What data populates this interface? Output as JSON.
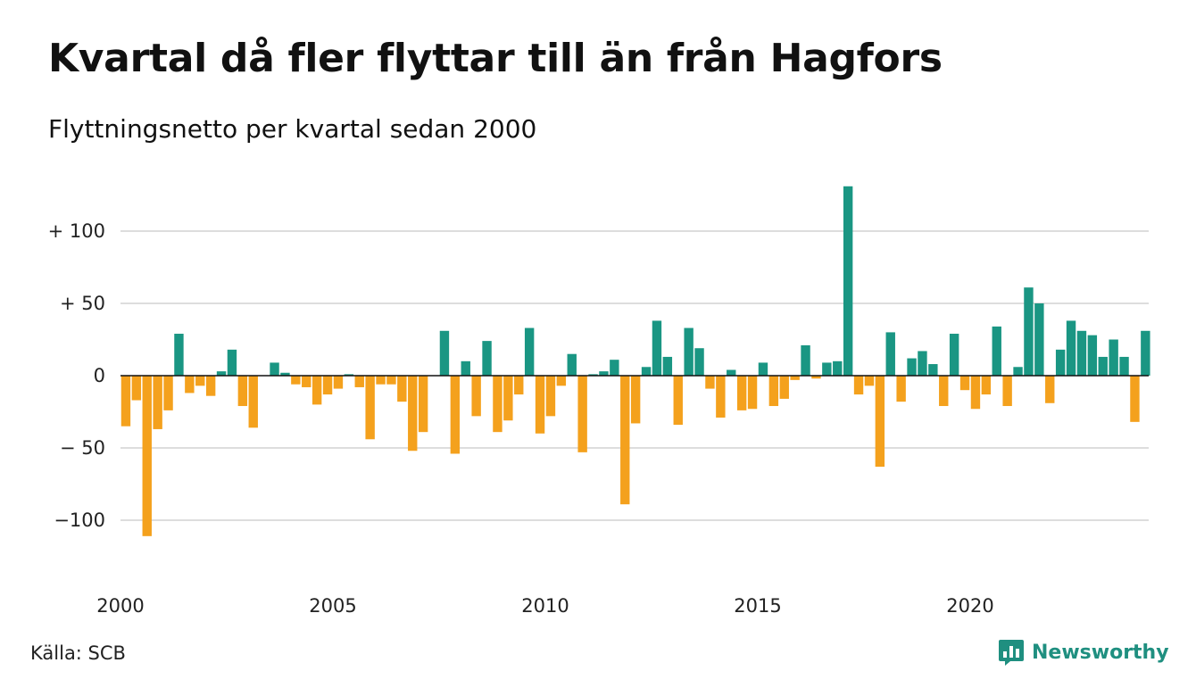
{
  "header": {
    "title": "Kvartal då fler flyttar till än från Hagfors",
    "subtitle": "Flyttningsnetto per kvartal sedan 2000"
  },
  "footer": {
    "source": "Källa: SCB",
    "brand": "Newsworthy",
    "brand_icon": "newsworthy-logo-icon"
  },
  "colors": {
    "positive": "#1a9683",
    "negative": "#f4a11d",
    "grid": "#dddddd",
    "zero_line": "#111111",
    "brand": "#1f8f80"
  },
  "chart_data": {
    "type": "bar",
    "title": "Kvartal då fler flyttar till än från Hagfors",
    "subtitle": "Flyttningsnetto per kvartal sedan 2000",
    "x_start": "2000 Q1",
    "x_unit": "quarter",
    "x_ticks": [
      "2000",
      "2005",
      "2010",
      "2015",
      "2020"
    ],
    "x_tick_quarter_index": [
      0,
      20,
      40,
      60,
      80
    ],
    "y_ticks": [
      100,
      50,
      0,
      -50,
      -100
    ],
    "y_tick_labels": [
      "+ 100",
      "+  50",
      "0",
      "− 50",
      "−100"
    ],
    "ylim": [
      -120,
      130
    ],
    "grid": true,
    "values": [
      -35,
      -17,
      -111,
      -37,
      -24,
      29,
      -12,
      -7,
      -14,
      3,
      18,
      -21,
      -36,
      0,
      9,
      2,
      -6,
      -8,
      -20,
      -13,
      -9,
      1,
      -8,
      -44,
      -6,
      -6,
      -18,
      -52,
      -39,
      0,
      31,
      -54,
      10,
      -28,
      24,
      -39,
      -31,
      -13,
      33,
      -40,
      -28,
      -7,
      15,
      -53,
      1,
      3,
      11,
      -89,
      -33,
      6,
      38,
      13,
      -34,
      33,
      19,
      -9,
      -29,
      4,
      -24,
      -23,
      9,
      -21,
      -16,
      -3,
      21,
      -2,
      9,
      10,
      131,
      -13,
      -7,
      -63,
      30,
      -18,
      12,
      17,
      8,
      -21,
      29,
      -10,
      -23,
      -13,
      34,
      -21,
      6,
      61,
      50,
      -19,
      18,
      38,
      31,
      28,
      13,
      25,
      13,
      -32,
      31
    ]
  }
}
